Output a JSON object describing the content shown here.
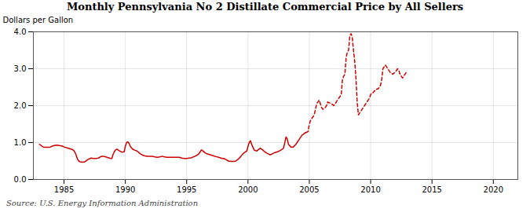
{
  "chart_data": {
    "type": "line",
    "title": "Monthly Pennsylvania No 2 Distillate Commercial Price by All Sellers",
    "ylabel": "Dollars per Gallon",
    "source": "Source: U.S. Energy Information Administration",
    "xlim": [
      1982.5,
      2022.0
    ],
    "ylim": [
      0.0,
      4.0
    ],
    "xticks": [
      1985,
      1990,
      1995,
      2000,
      2005,
      2010,
      2015,
      2020
    ],
    "yticks": [
      {
        "value": 0.0,
        "label": "0.0"
      },
      {
        "value": 1.0,
        "label": "1.0"
      },
      {
        "value": 2.0,
        "label": "2.0"
      },
      {
        "value": 3.0,
        "label": "3.0"
      },
      {
        "value": 4.0,
        "label": "4.0"
      }
    ],
    "grid": true,
    "x": [
      1983.0,
      1983.1,
      1983.2,
      1983.3,
      1983.5,
      1983.7,
      1983.9,
      1984.0,
      1984.2,
      1984.4,
      1984.6,
      1984.8,
      1984.9,
      1985.0,
      1985.1,
      1985.3,
      1985.5,
      1985.7,
      1985.8,
      1985.9,
      1986.0,
      1986.1,
      1986.2,
      1986.3,
      1986.5,
      1986.7,
      1986.9,
      1987.0,
      1987.2,
      1987.4,
      1987.6,
      1987.8,
      1987.9,
      1988.0,
      1988.2,
      1988.4,
      1988.6,
      1988.8,
      1988.9,
      1989.0,
      1989.1,
      1989.2,
      1989.3,
      1989.5,
      1989.7,
      1989.9,
      1990.0,
      1990.1,
      1990.2,
      1990.3,
      1990.4,
      1990.6,
      1990.8,
      1990.9,
      1991.0,
      1991.2,
      1991.4,
      1991.6,
      1991.8,
      1991.9,
      1992.0,
      1992.2,
      1992.4,
      1992.6,
      1992.8,
      1992.9,
      1993.0,
      1993.2,
      1993.4,
      1993.6,
      1993.8,
      1993.9,
      1994.0,
      1994.2,
      1994.4,
      1994.6,
      1994.8,
      1994.9,
      1995.0,
      1995.2,
      1995.4,
      1995.6,
      1995.8,
      1995.9,
      1996.0,
      1996.1,
      1996.2,
      1996.3,
      1996.5,
      1996.7,
      1996.9,
      1997.0,
      1997.2,
      1997.4,
      1997.6,
      1997.8,
      1997.9,
      1998.0,
      1998.2,
      1998.4,
      1998.6,
      1998.8,
      1998.9,
      1999.0,
      1999.2,
      1999.4,
      1999.6,
      1999.8,
      1999.9,
      2000.0,
      2000.1,
      2000.2,
      2000.3,
      2000.5,
      2000.7,
      2000.9,
      2001.0,
      2001.2,
      2001.4,
      2001.6,
      2001.8,
      2001.9,
      2002.0,
      2002.2,
      2002.4,
      2002.6,
      2002.8,
      2002.9,
      2003.0,
      2003.1,
      2003.2,
      2003.3,
      2003.5,
      2003.7,
      2003.9,
      2004.0,
      2004.1,
      2004.2,
      2004.3,
      2004.4,
      2004.5,
      2004.6,
      2004.7,
      2004.8,
      2004.9,
      2005.0,
      2005.1,
      2005.2,
      2005.3,
      2005.4,
      2005.5,
      2005.6,
      2005.7,
      2005.8,
      2005.9,
      2006.0,
      2006.1,
      2006.2,
      2006.3,
      2006.4,
      2006.5,
      2006.6,
      2006.7,
      2006.8,
      2006.9,
      2007.0,
      2007.1,
      2007.2,
      2007.3,
      2007.4,
      2007.5,
      2007.6,
      2007.7,
      2007.8,
      2007.9,
      2008.0,
      2008.1,
      2008.2,
      2008.3,
      2008.4,
      2008.5,
      2008.6,
      2008.7,
      2008.8,
      2008.9,
      2009.0,
      2009.1,
      2009.2,
      2009.3,
      2009.4,
      2009.5,
      2009.6,
      2009.7,
      2009.8,
      2009.9,
      2010.0,
      2010.1,
      2010.2,
      2010.3,
      2010.4,
      2010.5,
      2010.6,
      2010.7,
      2010.8,
      2010.9,
      2011.0,
      2011.1,
      2011.2,
      2011.3,
      2011.4,
      2011.5,
      2011.6,
      2011.7,
      2011.8,
      2011.9,
      2012.0,
      2012.1,
      2012.2,
      2012.3,
      2012.4,
      2012.5,
      2012.6,
      2012.7,
      2012.8,
      2012.9
    ],
    "series": [
      {
        "color": "#CC0000",
        "line_style": "solid",
        "values": [
          0.95,
          0.93,
          0.9,
          0.88,
          0.87,
          0.87,
          0.88,
          0.9,
          0.92,
          0.93,
          0.92,
          0.91,
          0.9,
          0.88,
          0.87,
          0.85,
          0.83,
          0.81,
          0.78,
          0.73,
          0.65,
          0.55,
          0.5,
          0.48,
          0.47,
          0.48,
          0.53,
          0.55,
          0.58,
          0.57,
          0.57,
          0.58,
          0.6,
          0.62,
          0.63,
          0.61,
          0.59,
          0.57,
          0.57,
          0.68,
          0.75,
          0.8,
          0.82,
          0.78,
          0.74,
          0.75,
          0.9,
          1.0,
          1.02,
          0.98,
          0.9,
          0.82,
          0.79,
          0.78,
          0.76,
          0.7,
          0.66,
          0.64,
          0.63,
          0.63,
          0.63,
          0.63,
          0.61,
          0.6,
          0.61,
          0.62,
          0.63,
          0.61,
          0.6,
          0.6,
          0.6,
          0.6,
          0.6,
          0.6,
          0.6,
          0.58,
          0.57,
          0.57,
          0.57,
          0.58,
          0.59,
          0.62,
          0.65,
          0.67,
          0.7,
          0.75,
          0.8,
          0.78,
          0.72,
          0.69,
          0.67,
          0.66,
          0.64,
          0.62,
          0.6,
          0.58,
          0.57,
          0.57,
          0.54,
          0.5,
          0.49,
          0.49,
          0.49,
          0.5,
          0.55,
          0.62,
          0.7,
          0.75,
          0.77,
          0.9,
          1.0,
          1.05,
          0.95,
          0.8,
          0.77,
          0.82,
          0.85,
          0.8,
          0.74,
          0.7,
          0.67,
          0.68,
          0.7,
          0.73,
          0.75,
          0.78,
          0.82,
          0.85,
          1.0,
          1.15,
          1.1,
          0.95,
          0.88,
          0.88,
          0.95,
          1.0,
          1.05,
          1.1,
          1.15,
          1.2,
          1.22,
          1.25,
          1.27,
          null,
          null,
          null,
          null,
          null,
          null,
          null,
          null,
          null,
          null,
          null,
          null,
          null,
          null,
          null,
          null,
          null,
          null,
          null,
          null,
          null,
          null,
          null,
          null,
          null,
          null,
          null,
          null,
          null,
          null,
          null,
          null,
          null,
          null,
          null,
          null,
          null,
          null,
          null,
          null,
          null,
          null,
          null,
          null,
          null,
          null,
          null,
          null,
          null,
          null,
          null,
          null,
          null,
          null,
          null,
          null,
          null,
          null,
          null,
          null,
          null,
          null,
          null,
          null,
          null,
          null,
          null,
          null,
          null,
          null,
          null,
          null,
          null,
          null,
          null,
          null,
          null,
          null,
          null,
          null,
          null,
          null
        ]
      },
      {
        "color": "#CC0000",
        "line_style": "dashed",
        "values": [
          null,
          null,
          null,
          null,
          null,
          null,
          null,
          null,
          null,
          null,
          null,
          null,
          null,
          null,
          null,
          null,
          null,
          null,
          null,
          null,
          null,
          null,
          null,
          null,
          null,
          null,
          null,
          null,
          null,
          null,
          null,
          null,
          null,
          null,
          null,
          null,
          null,
          null,
          null,
          null,
          null,
          null,
          null,
          null,
          null,
          null,
          null,
          null,
          null,
          null,
          null,
          null,
          null,
          null,
          null,
          null,
          null,
          null,
          null,
          null,
          null,
          null,
          null,
          null,
          null,
          null,
          null,
          null,
          null,
          null,
          null,
          null,
          null,
          null,
          null,
          null,
          null,
          null,
          null,
          null,
          null,
          null,
          null,
          null,
          null,
          null,
          null,
          null,
          null,
          null,
          null,
          null,
          null,
          null,
          null,
          null,
          null,
          null,
          null,
          null,
          null,
          null,
          null,
          null,
          null,
          null,
          null,
          null,
          null,
          null,
          null,
          null,
          null,
          null,
          null,
          null,
          null,
          null,
          null,
          null,
          null,
          null,
          null,
          null,
          null,
          null,
          null,
          null,
          null,
          null,
          null,
          null,
          null,
          null,
          null,
          null,
          null,
          null,
          null,
          null,
          null,
          null,
          1.27,
          1.28,
          1.3,
          1.5,
          1.6,
          1.65,
          1.7,
          1.75,
          1.9,
          2.05,
          2.1,
          2.15,
          2.05,
          1.95,
          1.9,
          1.92,
          1.95,
          2.0,
          2.1,
          2.08,
          2.07,
          2.05,
          2.03,
          2.0,
          2.05,
          2.1,
          2.15,
          2.2,
          2.25,
          2.3,
          2.7,
          2.8,
          2.85,
          3.3,
          3.45,
          3.5,
          3.9,
          3.95,
          3.85,
          3.5,
          3.2,
          2.75,
          2.1,
          1.75,
          1.8,
          1.85,
          1.9,
          1.95,
          2.0,
          2.05,
          2.1,
          2.15,
          2.2,
          2.3,
          2.35,
          2.35,
          2.4,
          2.4,
          2.45,
          2.45,
          2.5,
          2.55,
          2.7,
          3.0,
          3.05,
          3.1,
          3.05,
          3.0,
          2.95,
          2.9,
          2.88,
          2.85,
          2.88,
          2.9,
          2.95,
          3.0,
          2.95,
          2.85,
          2.8,
          2.75,
          2.8,
          2.85,
          2.9
        ]
      }
    ]
  }
}
